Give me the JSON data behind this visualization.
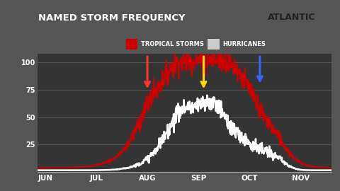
{
  "title": "NAMED STORM FREQUENCY",
  "subtitle_region": "ATLANTIC",
  "legend_ts_label": "TROPICAL STORMS",
  "legend_hur_label": "HURRICANES",
  "legend_ts_color": "#cc0000",
  "legend_hur_color": "#cccccc",
  "bg_color": "#555555",
  "chart_bg": "#333333",
  "chart_bg_alpha": 0.75,
  "grid_color": "#777777",
  "title_bar_color": "#bb0000",
  "title_text_bg": "#1a1a1a",
  "atlantic_bg": "#c8c8c8",
  "yticks": [
    25,
    50,
    75,
    100
  ],
  "ylim": [
    0,
    108
  ],
  "months": [
    "JUN",
    "JUL",
    "AUG",
    "SEP",
    "OCT",
    "NOV"
  ],
  "month_x": [
    6.0,
    7.0,
    8.0,
    9.0,
    10.0,
    11.0
  ],
  "xlim": [
    5.85,
    11.6
  ],
  "arrows": [
    {
      "x_month": 8.0,
      "color": "#ff3333",
      "y_tip": 74,
      "y_tail": 107
    },
    {
      "x_month": 9.1,
      "color": "#ffdd00",
      "y_tip": 74,
      "y_tail": 107
    },
    {
      "x_month": 10.2,
      "color": "#3366ff",
      "y_tip": 79,
      "y_tail": 107
    }
  ],
  "ts_color": "#cc0000",
  "hur_color": "#ffffff",
  "ts_lw": 1.4,
  "hur_lw": 1.8,
  "figsize": [
    4.8,
    2.7
  ],
  "dpi": 100
}
